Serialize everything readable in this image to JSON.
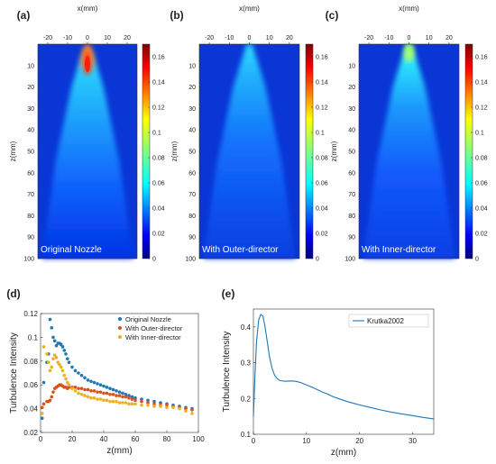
{
  "chart_data": [
    {
      "panel_label": "(a)",
      "type": "heatmap",
      "xlabel": "x(mm)",
      "ylabel": "z(mm)",
      "xlim": [
        -25,
        25
      ],
      "ylim": [
        0,
        100
      ],
      "x_ticks": [
        "-20",
        "-10",
        "0",
        "10",
        "20"
      ],
      "y_ticks": [
        "10",
        "20",
        "30",
        "40",
        "50",
        "60",
        "70",
        "80",
        "90",
        "100"
      ],
      "colorbar_ticks": [
        "0.16",
        "0.14",
        "0.12",
        "0.1",
        "0.08",
        "0.06",
        "0.04",
        "0.02",
        "0"
      ],
      "colorbar_range": [
        0,
        0.17
      ],
      "annotation": "Original Nozzle"
    },
    {
      "panel_label": "(b)",
      "type": "heatmap",
      "xlabel": "x(mm)",
      "ylabel": "z(mm)",
      "xlim": [
        -25,
        25
      ],
      "ylim": [
        0,
        100
      ],
      "x_ticks": [
        "-20",
        "-10",
        "0",
        "10",
        "20"
      ],
      "y_ticks": [
        "10",
        "20",
        "30",
        "40",
        "50",
        "60",
        "70",
        "80",
        "90",
        "100"
      ],
      "colorbar_ticks": [
        "0.16",
        "0.14",
        "0.12",
        "0.1",
        "0.08",
        "0.06",
        "0.04",
        "0.02",
        "0"
      ],
      "colorbar_range": [
        0,
        0.17
      ],
      "annotation": "With Outer-director"
    },
    {
      "panel_label": "(c)",
      "type": "heatmap",
      "xlabel": "x(mm)",
      "ylabel": "z(mm)",
      "xlim": [
        -25,
        25
      ],
      "ylim": [
        0,
        100
      ],
      "x_ticks": [
        "-20",
        "-10",
        "0",
        "10",
        "20"
      ],
      "y_ticks": [
        "10",
        "20",
        "30",
        "40",
        "50",
        "60",
        "70",
        "80",
        "90",
        "100"
      ],
      "colorbar_ticks": [
        "0.16",
        "0.14",
        "0.12",
        "0.1",
        "0.08",
        "0.06",
        "0.04",
        "0.02",
        "0"
      ],
      "colorbar_range": [
        0,
        0.17
      ],
      "annotation": "With Inner-director"
    },
    {
      "panel_label": "(d)",
      "type": "scatter",
      "xlabel": "z(mm)",
      "ylabel": "Turbulence Intensity",
      "xlim": [
        0,
        100
      ],
      "ylim": [
        0.02,
        0.12
      ],
      "x_ticks": [
        "0",
        "20",
        "40",
        "60",
        "80",
        "100"
      ],
      "y_ticks": [
        "0.02",
        "0.04",
        "0.06",
        "0.08",
        "0.1",
        "0.12"
      ],
      "legend": "top-right",
      "series": [
        {
          "name": "Original Nozzle",
          "color": "#1f77b4",
          "x": [
            1,
            2,
            4,
            5,
            6,
            7,
            8,
            9,
            10,
            11,
            12,
            13,
            14,
            15,
            16,
            17,
            18,
            20,
            22,
            24,
            26,
            28,
            30,
            32,
            34,
            36,
            38,
            40,
            42,
            44,
            46,
            48,
            50,
            52,
            54,
            56,
            58,
            60,
            64,
            68,
            72,
            76,
            80,
            84,
            88,
            92,
            96
          ],
          "y": [
            0.032,
            0.062,
            0.079,
            0.086,
            0.115,
            0.108,
            0.1,
            0.097,
            0.093,
            0.095,
            0.095,
            0.094,
            0.092,
            0.089,
            0.086,
            0.082,
            0.079,
            0.075,
            0.072,
            0.07,
            0.068,
            0.066,
            0.064,
            0.063,
            0.062,
            0.061,
            0.06,
            0.059,
            0.058,
            0.057,
            0.056,
            0.055,
            0.054,
            0.053,
            0.052,
            0.051,
            0.05,
            0.049,
            0.048,
            0.047,
            0.046,
            0.045,
            0.044,
            0.043,
            0.042,
            0.041,
            0.04
          ]
        },
        {
          "name": "With Outer-director",
          "color": "#d95319",
          "x": [
            1,
            2,
            4,
            5,
            6,
            7,
            8,
            9,
            10,
            11,
            12,
            13,
            14,
            15,
            16,
            17,
            18,
            20,
            22,
            24,
            26,
            28,
            30,
            32,
            34,
            36,
            38,
            40,
            42,
            44,
            46,
            48,
            50,
            52,
            54,
            56,
            58,
            60,
            64,
            68,
            72,
            76,
            80,
            84,
            88,
            92,
            96
          ],
          "y": [
            0.041,
            0.044,
            0.046,
            0.046,
            0.047,
            0.05,
            0.054,
            0.057,
            0.058,
            0.059,
            0.06,
            0.06,
            0.059,
            0.058,
            0.058,
            0.057,
            0.058,
            0.058,
            0.058,
            0.057,
            0.057,
            0.056,
            0.056,
            0.055,
            0.055,
            0.054,
            0.054,
            0.053,
            0.053,
            0.052,
            0.052,
            0.051,
            0.051,
            0.05,
            0.05,
            0.049,
            0.048,
            0.047,
            0.046,
            0.045,
            0.044,
            0.043,
            0.043,
            0.042,
            0.041,
            0.04,
            0.039
          ]
        },
        {
          "name": "With Inner-director",
          "color": "#edb120",
          "x": [
            1,
            2,
            4,
            5,
            6,
            7,
            8,
            9,
            10,
            11,
            12,
            13,
            14,
            15,
            16,
            17,
            18,
            20,
            22,
            24,
            26,
            28,
            30,
            32,
            34,
            36,
            38,
            40,
            42,
            44,
            46,
            48,
            50,
            52,
            54,
            56,
            58,
            60,
            64,
            68,
            72,
            76,
            80,
            84,
            88,
            92,
            96
          ],
          "y": [
            0.036,
            0.092,
            0.086,
            0.079,
            0.072,
            0.075,
            0.082,
            0.085,
            0.083,
            0.079,
            0.077,
            0.075,
            0.072,
            0.068,
            0.065,
            0.062,
            0.06,
            0.057,
            0.055,
            0.053,
            0.052,
            0.051,
            0.05,
            0.049,
            0.049,
            0.048,
            0.048,
            0.047,
            0.047,
            0.046,
            0.046,
            0.046,
            0.045,
            0.045,
            0.045,
            0.044,
            0.044,
            0.044,
            0.043,
            0.043,
            0.042,
            0.042,
            0.041,
            0.041,
            0.04,
            0.038,
            0.036
          ]
        }
      ]
    },
    {
      "panel_label": "(e)",
      "type": "line",
      "xlabel": "z(mm)",
      "ylabel": "Turbulence Intensity",
      "xlim": [
        0,
        34
      ],
      "ylim": [
        0.1,
        0.45
      ],
      "x_ticks": [
        "0",
        "10",
        "20",
        "30"
      ],
      "y_ticks": [
        "0.1",
        "0.2",
        "0.3",
        "0.4"
      ],
      "legend": "top-right",
      "series": [
        {
          "name": "Krutka2002",
          "color": "#1f77b4",
          "x": [
            0,
            0.3,
            0.6,
            1.0,
            1.4,
            1.8,
            2.2,
            2.6,
            3.0,
            3.5,
            4.0,
            4.5,
            5.0,
            6.0,
            7.0,
            8.0,
            9.0,
            10.0,
            11.0,
            12.0,
            13.0,
            14.0,
            15.0,
            16.0,
            17.0,
            18.0,
            19.0,
            20.0,
            22.0,
            24.0,
            26.0,
            28.0,
            30.0,
            32.0,
            34.0
          ],
          "y": [
            0.15,
            0.27,
            0.36,
            0.42,
            0.435,
            0.43,
            0.4,
            0.36,
            0.32,
            0.285,
            0.265,
            0.255,
            0.25,
            0.248,
            0.249,
            0.248,
            0.244,
            0.238,
            0.232,
            0.225,
            0.218,
            0.212,
            0.205,
            0.2,
            0.195,
            0.19,
            0.186,
            0.182,
            0.175,
            0.168,
            0.162,
            0.157,
            0.152,
            0.147,
            0.143
          ]
        }
      ]
    }
  ]
}
